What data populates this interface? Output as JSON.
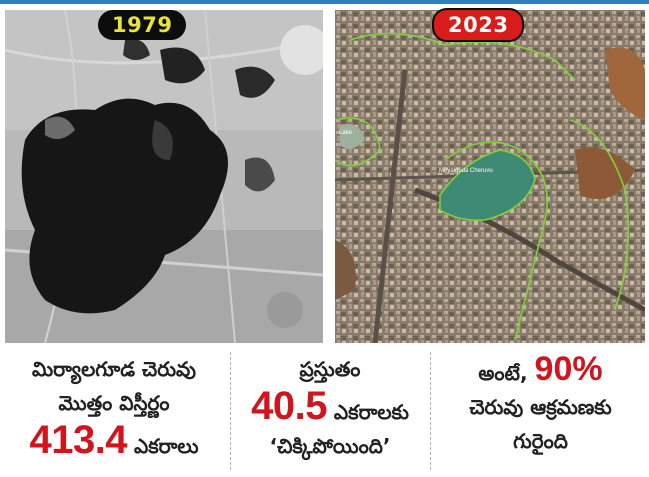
{
  "badges": {
    "year_old": "1979",
    "year_new": "2023"
  },
  "map_labels": {
    "lake_name": "Miryalguda Cheruvu",
    "left_lake": "Lake"
  },
  "stats": [
    {
      "line1": "మిర్యాలగూడ చెరువు",
      "line2": "మొత్తం విస్తీర్ణం",
      "value": "413.4",
      "unit": " ఎకరాలు"
    },
    {
      "line1": "ప్రస్తుతం",
      "value": "40.5",
      "unit": " ఎకరాలకు",
      "line3": "‘చిక్కిపోయింది’"
    },
    {
      "prefix": "అంటే, ",
      "value": "90%",
      "line2": "చెరువు ఆక్రమణకు",
      "line3": "గురైంది"
    }
  ],
  "colors": {
    "accent_red": "#d0151c",
    "badge_yellow": "#e8e43a",
    "outline_green": "#7fd13b"
  }
}
